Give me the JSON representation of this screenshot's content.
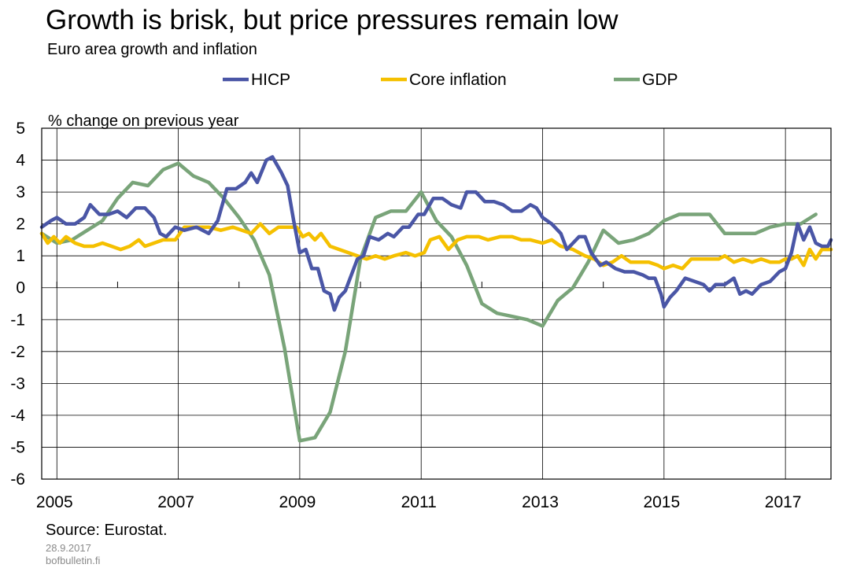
{
  "chart_data": {
    "type": "line",
    "title": "Growth is brisk, but price pressures remain low",
    "subtitle": "Euro area growth and inflation",
    "ylabel": "% change on previous year",
    "xlabel": "",
    "ylim": [
      -6,
      5
    ],
    "xlim": [
      2004.75,
      2017.75
    ],
    "yticks": [
      5,
      4,
      3,
      2,
      1,
      0,
      -1,
      -2,
      -3,
      -4,
      -5,
      -6
    ],
    "xtick_labels": [
      "2005",
      "2007",
      "2009",
      "2011",
      "2013",
      "2015",
      "2017"
    ],
    "grid": true,
    "legend_position": "top",
    "series": [
      {
        "name": "HICP",
        "color": "#4a56a6",
        "points": [
          [
            2004.75,
            1.9
          ],
          [
            2004.9,
            2.1
          ],
          [
            2005.0,
            2.2
          ],
          [
            2005.15,
            2.0
          ],
          [
            2005.3,
            2.0
          ],
          [
            2005.45,
            2.2
          ],
          [
            2005.55,
            2.6
          ],
          [
            2005.7,
            2.3
          ],
          [
            2005.85,
            2.3
          ],
          [
            2006.0,
            2.4
          ],
          [
            2006.15,
            2.2
          ],
          [
            2006.3,
            2.5
          ],
          [
            2006.45,
            2.5
          ],
          [
            2006.6,
            2.2
          ],
          [
            2006.7,
            1.7
          ],
          [
            2006.8,
            1.6
          ],
          [
            2006.95,
            1.9
          ],
          [
            2007.1,
            1.8
          ],
          [
            2007.3,
            1.9
          ],
          [
            2007.5,
            1.7
          ],
          [
            2007.65,
            2.1
          ],
          [
            2007.8,
            3.1
          ],
          [
            2007.95,
            3.1
          ],
          [
            2008.1,
            3.3
          ],
          [
            2008.2,
            3.6
          ],
          [
            2008.3,
            3.3
          ],
          [
            2008.45,
            4.0
          ],
          [
            2008.55,
            4.1
          ],
          [
            2008.7,
            3.6
          ],
          [
            2008.8,
            3.2
          ],
          [
            2008.9,
            2.1
          ],
          [
            2009.0,
            1.1
          ],
          [
            2009.1,
            1.2
          ],
          [
            2009.2,
            0.6
          ],
          [
            2009.3,
            0.6
          ],
          [
            2009.4,
            -0.1
          ],
          [
            2009.5,
            -0.2
          ],
          [
            2009.57,
            -0.7
          ],
          [
            2009.65,
            -0.3
          ],
          [
            2009.75,
            -0.1
          ],
          [
            2009.85,
            0.4
          ],
          [
            2009.95,
            0.9
          ],
          [
            2010.05,
            1.0
          ],
          [
            2010.15,
            1.6
          ],
          [
            2010.3,
            1.5
          ],
          [
            2010.45,
            1.7
          ],
          [
            2010.55,
            1.6
          ],
          [
            2010.7,
            1.9
          ],
          [
            2010.8,
            1.9
          ],
          [
            2010.95,
            2.3
          ],
          [
            2011.05,
            2.3
          ],
          [
            2011.2,
            2.8
          ],
          [
            2011.35,
            2.8
          ],
          [
            2011.5,
            2.6
          ],
          [
            2011.65,
            2.5
          ],
          [
            2011.75,
            3.0
          ],
          [
            2011.9,
            3.0
          ],
          [
            2012.05,
            2.7
          ],
          [
            2012.2,
            2.7
          ],
          [
            2012.35,
            2.6
          ],
          [
            2012.5,
            2.4
          ],
          [
            2012.65,
            2.4
          ],
          [
            2012.8,
            2.6
          ],
          [
            2012.9,
            2.5
          ],
          [
            2013.0,
            2.2
          ],
          [
            2013.15,
            2.0
          ],
          [
            2013.3,
            1.7
          ],
          [
            2013.4,
            1.2
          ],
          [
            2013.5,
            1.4
          ],
          [
            2013.6,
            1.6
          ],
          [
            2013.7,
            1.6
          ],
          [
            2013.8,
            1.1
          ],
          [
            2013.95,
            0.7
          ],
          [
            2014.05,
            0.8
          ],
          [
            2014.2,
            0.6
          ],
          [
            2014.35,
            0.5
          ],
          [
            2014.5,
            0.5
          ],
          [
            2014.65,
            0.4
          ],
          [
            2014.75,
            0.3
          ],
          [
            2014.85,
            0.3
          ],
          [
            2014.95,
            -0.2
          ],
          [
            2015.0,
            -0.6
          ],
          [
            2015.1,
            -0.3
          ],
          [
            2015.2,
            -0.1
          ],
          [
            2015.35,
            0.3
          ],
          [
            2015.5,
            0.2
          ],
          [
            2015.65,
            0.1
          ],
          [
            2015.75,
            -0.1
          ],
          [
            2015.85,
            0.1
          ],
          [
            2016.0,
            0.1
          ],
          [
            2016.15,
            0.3
          ],
          [
            2016.25,
            -0.2
          ],
          [
            2016.35,
            -0.1
          ],
          [
            2016.45,
            -0.2
          ],
          [
            2016.6,
            0.1
          ],
          [
            2016.75,
            0.2
          ],
          [
            2016.9,
            0.5
          ],
          [
            2017.0,
            0.6
          ],
          [
            2017.1,
            1.1
          ],
          [
            2017.2,
            2.0
          ],
          [
            2017.3,
            1.5
          ],
          [
            2017.4,
            1.9
          ],
          [
            2017.5,
            1.4
          ],
          [
            2017.6,
            1.3
          ],
          [
            2017.7,
            1.3
          ],
          [
            2017.75,
            1.5
          ]
        ]
      },
      {
        "name": "Core inflation",
        "color": "#f5c000",
        "points": [
          [
            2004.75,
            1.7
          ],
          [
            2004.85,
            1.4
          ],
          [
            2004.95,
            1.6
          ],
          [
            2005.05,
            1.4
          ],
          [
            2005.15,
            1.6
          ],
          [
            2005.3,
            1.4
          ],
          [
            2005.45,
            1.3
          ],
          [
            2005.6,
            1.3
          ],
          [
            2005.75,
            1.4
          ],
          [
            2005.9,
            1.3
          ],
          [
            2006.05,
            1.2
          ],
          [
            2006.2,
            1.3
          ],
          [
            2006.35,
            1.5
          ],
          [
            2006.45,
            1.3
          ],
          [
            2006.6,
            1.4
          ],
          [
            2006.75,
            1.5
          ],
          [
            2006.95,
            1.5
          ],
          [
            2007.1,
            1.9
          ],
          [
            2007.3,
            1.9
          ],
          [
            2007.5,
            1.9
          ],
          [
            2007.7,
            1.8
          ],
          [
            2007.9,
            1.9
          ],
          [
            2008.05,
            1.8
          ],
          [
            2008.2,
            1.7
          ],
          [
            2008.35,
            2.0
          ],
          [
            2008.5,
            1.7
          ],
          [
            2008.65,
            1.9
          ],
          [
            2008.8,
            1.9
          ],
          [
            2008.95,
            1.9
          ],
          [
            2009.05,
            1.6
          ],
          [
            2009.15,
            1.7
          ],
          [
            2009.25,
            1.5
          ],
          [
            2009.35,
            1.7
          ],
          [
            2009.5,
            1.3
          ],
          [
            2009.65,
            1.2
          ],
          [
            2009.8,
            1.1
          ],
          [
            2009.95,
            1.0
          ],
          [
            2010.1,
            0.9
          ],
          [
            2010.25,
            1.0
          ],
          [
            2010.4,
            0.9
          ],
          [
            2010.55,
            1.0
          ],
          [
            2010.75,
            1.1
          ],
          [
            2010.9,
            1.0
          ],
          [
            2011.05,
            1.1
          ],
          [
            2011.15,
            1.5
          ],
          [
            2011.3,
            1.6
          ],
          [
            2011.45,
            1.2
          ],
          [
            2011.6,
            1.5
          ],
          [
            2011.75,
            1.6
          ],
          [
            2011.95,
            1.6
          ],
          [
            2012.1,
            1.5
          ],
          [
            2012.3,
            1.6
          ],
          [
            2012.5,
            1.6
          ],
          [
            2012.65,
            1.5
          ],
          [
            2012.8,
            1.5
          ],
          [
            2013.0,
            1.4
          ],
          [
            2013.15,
            1.5
          ],
          [
            2013.3,
            1.3
          ],
          [
            2013.5,
            1.2
          ],
          [
            2013.7,
            1.0
          ],
          [
            2013.85,
            0.9
          ],
          [
            2014.0,
            0.7
          ],
          [
            2014.15,
            0.8
          ],
          [
            2014.3,
            1.0
          ],
          [
            2014.45,
            0.8
          ],
          [
            2014.6,
            0.8
          ],
          [
            2014.75,
            0.8
          ],
          [
            2014.9,
            0.7
          ],
          [
            2015.0,
            0.6
          ],
          [
            2015.15,
            0.7
          ],
          [
            2015.3,
            0.6
          ],
          [
            2015.45,
            0.9
          ],
          [
            2015.6,
            0.9
          ],
          [
            2015.75,
            0.9
          ],
          [
            2015.9,
            0.9
          ],
          [
            2016.0,
            1.0
          ],
          [
            2016.15,
            0.8
          ],
          [
            2016.3,
            0.9
          ],
          [
            2016.45,
            0.8
          ],
          [
            2016.6,
            0.9
          ],
          [
            2016.75,
            0.8
          ],
          [
            2016.9,
            0.8
          ],
          [
            2017.0,
            0.9
          ],
          [
            2017.1,
            0.9
          ],
          [
            2017.2,
            1.0
          ],
          [
            2017.3,
            0.7
          ],
          [
            2017.4,
            1.2
          ],
          [
            2017.5,
            0.9
          ],
          [
            2017.6,
            1.2
          ],
          [
            2017.75,
            1.2
          ]
        ]
      },
      {
        "name": "GDP",
        "color": "#79a479",
        "points": [
          [
            2004.75,
            1.7
          ],
          [
            2005.0,
            1.4
          ],
          [
            2005.25,
            1.5
          ],
          [
            2005.5,
            1.8
          ],
          [
            2005.75,
            2.1
          ],
          [
            2006.0,
            2.8
          ],
          [
            2006.25,
            3.3
          ],
          [
            2006.5,
            3.2
          ],
          [
            2006.75,
            3.7
          ],
          [
            2007.0,
            3.9
          ],
          [
            2007.25,
            3.5
          ],
          [
            2007.5,
            3.3
          ],
          [
            2007.75,
            2.8
          ],
          [
            2008.0,
            2.2
          ],
          [
            2008.25,
            1.5
          ],
          [
            2008.5,
            0.4
          ],
          [
            2008.75,
            -1.9
          ],
          [
            2009.0,
            -4.8
          ],
          [
            2009.25,
            -4.7
          ],
          [
            2009.5,
            -3.9
          ],
          [
            2009.75,
            -2.0
          ],
          [
            2010.0,
            0.9
          ],
          [
            2010.25,
            2.2
          ],
          [
            2010.5,
            2.4
          ],
          [
            2010.75,
            2.4
          ],
          [
            2011.0,
            3.0
          ],
          [
            2011.25,
            2.1
          ],
          [
            2011.5,
            1.6
          ],
          [
            2011.75,
            0.7
          ],
          [
            2012.0,
            -0.5
          ],
          [
            2012.25,
            -0.8
          ],
          [
            2012.5,
            -0.9
          ],
          [
            2012.75,
            -1.0
          ],
          [
            2013.0,
            -1.2
          ],
          [
            2013.25,
            -0.4
          ],
          [
            2013.5,
            0.0
          ],
          [
            2013.75,
            0.8
          ],
          [
            2014.0,
            1.8
          ],
          [
            2014.25,
            1.4
          ],
          [
            2014.5,
            1.5
          ],
          [
            2014.75,
            1.7
          ],
          [
            2015.0,
            2.1
          ],
          [
            2015.25,
            2.3
          ],
          [
            2015.5,
            2.3
          ],
          [
            2015.75,
            2.3
          ],
          [
            2016.0,
            1.7
          ],
          [
            2016.25,
            1.7
          ],
          [
            2016.5,
            1.7
          ],
          [
            2016.75,
            1.9
          ],
          [
            2017.0,
            2.0
          ],
          [
            2017.25,
            2.0
          ],
          [
            2017.5,
            2.3
          ]
        ]
      }
    ]
  },
  "source": "Source: Eurostat.",
  "date": "28.9.2017",
  "site": "bofbulletin.fi"
}
